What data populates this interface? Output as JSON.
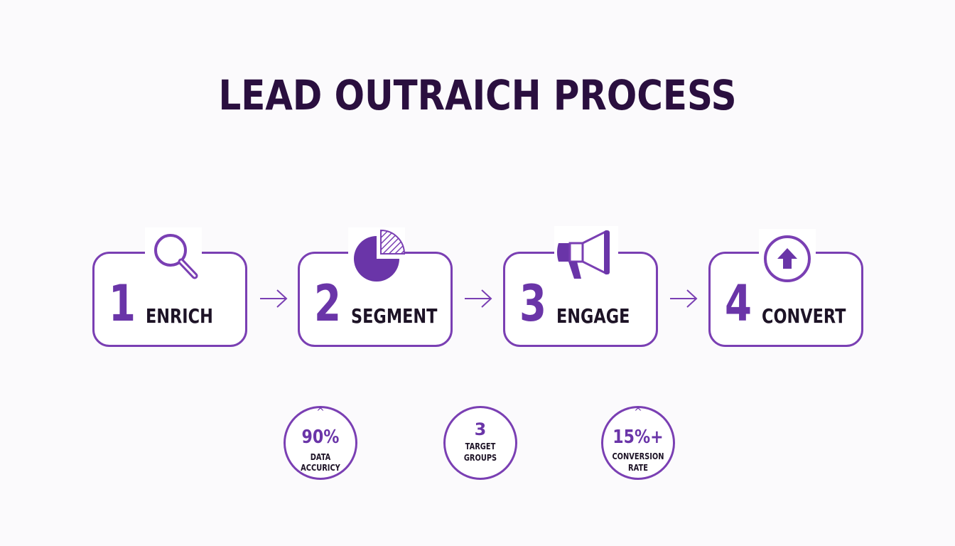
{
  "title": "LEAD OUTRAICH PROCESS",
  "colors": {
    "accent": "#7a3fb3",
    "title": "#2a0f3f",
    "text": "#1d1326"
  },
  "steps": [
    {
      "number": "1",
      "label": "ENRICH",
      "icon": "magnifier-icon"
    },
    {
      "number": "2",
      "label": "SEGMENT",
      "icon": "pie-chart-icon"
    },
    {
      "number": "3",
      "label": "ENGAGE",
      "icon": "megaphone-icon"
    },
    {
      "number": "4",
      "label": "CONVERT",
      "icon": "up-arrow-circle-icon"
    }
  ],
  "stats": [
    {
      "caret": "^",
      "value": "90%",
      "caption_line1": "DATA ACCURICY",
      "caption_line2": ""
    },
    {
      "caret": "",
      "value": "3",
      "caption_line1": "TARGET",
      "caption_line2": "GROUPS"
    },
    {
      "caret": "^",
      "value": "15%+",
      "caption_line1": "CONVERSION",
      "caption_line2": "RATE"
    }
  ]
}
